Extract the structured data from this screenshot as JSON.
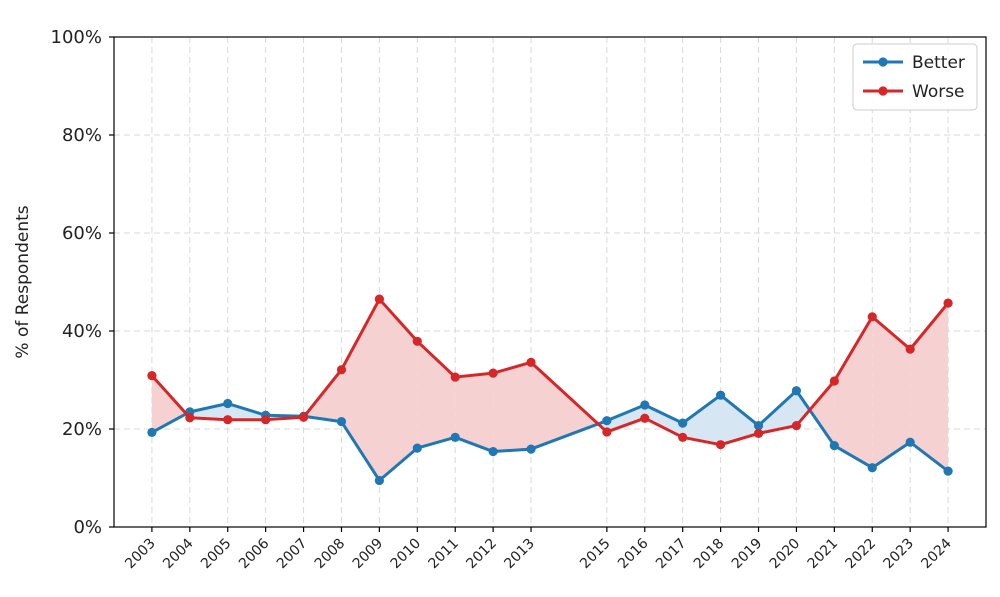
{
  "chart_data": {
    "type": "line",
    "title": "",
    "xlabel": "",
    "ylabel": "% of Respondents",
    "x": [
      2003,
      2004,
      2005,
      2006,
      2007,
      2008,
      2009,
      2010,
      2011,
      2012,
      2013,
      2015,
      2016,
      2017,
      2018,
      2019,
      2020,
      2021,
      2022,
      2023,
      2024
    ],
    "x_tick_labels": [
      "2003",
      "2004",
      "2005",
      "2006",
      "2007",
      "2008",
      "2009",
      "2010",
      "2011",
      "2012",
      "2013",
      "2015",
      "2016",
      "2017",
      "2018",
      "2019",
      "2020",
      "2021",
      "2022",
      "2023",
      "2024"
    ],
    "ylim": [
      0,
      100
    ],
    "y_ticks": [
      0,
      20,
      40,
      60,
      80,
      100
    ],
    "y_tick_labels": [
      "0%",
      "20%",
      "40%",
      "60%",
      "80%",
      "100%"
    ],
    "grid": true,
    "legend_position": "top-right",
    "fill_between": true,
    "series": [
      {
        "name": "Better",
        "color": "#1f77b4",
        "fill_color": "#d6e6f2",
        "values": [
          19.3,
          23.5,
          25.2,
          22.8,
          22.6,
          21.5,
          9.5,
          16.1,
          18.3,
          15.4,
          15.9,
          21.7,
          24.9,
          21.2,
          26.9,
          20.7,
          27.8,
          16.6,
          12.1,
          17.3,
          11.4
        ]
      },
      {
        "name": "Worse",
        "color": "#d62728",
        "fill_color": "#f6d1d1",
        "values": [
          30.9,
          22.3,
          21.9,
          21.9,
          22.4,
          32.1,
          46.5,
          37.9,
          30.6,
          31.4,
          33.6,
          19.4,
          22.2,
          18.3,
          16.8,
          19.1,
          20.7,
          29.8,
          42.9,
          36.3,
          45.7
        ]
      }
    ]
  }
}
